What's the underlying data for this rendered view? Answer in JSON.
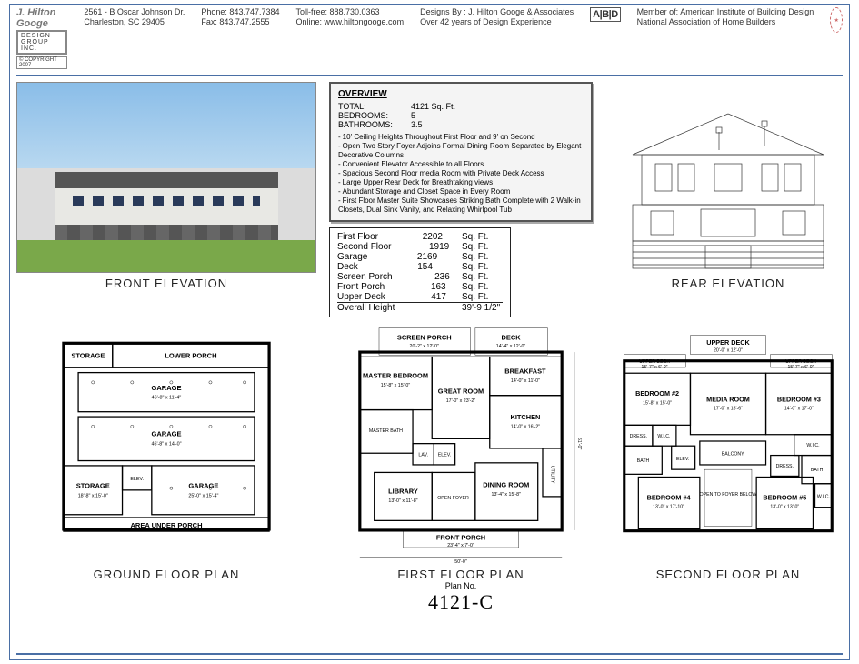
{
  "header": {
    "company": "J. Hilton Googe",
    "company_sub": "DESIGN GROUP INC.",
    "copyright": "© COPYRIGHT 2007",
    "addr1": "2561 - B Oscar Johnson Dr.",
    "addr2": "Charleston, SC 29405",
    "phone": "Phone: 843.747.7384",
    "fax": "Fax: 843.747.2555",
    "tollfree": "Toll-free: 888.730.0363",
    "online": "Online: www.hiltongooge.com",
    "designs": "Designs By : J. Hilton Googe & Associates",
    "experience": "Over 42 years of Design Experience",
    "abd": "A|B|D",
    "member1": "Member of: American Institute of Building Design",
    "member2": "National Association of Home Builders"
  },
  "labels": {
    "front": "FRONT ELEVATION",
    "rear": "REAR ELEVATION",
    "ground": "GROUND FLOOR PLAN",
    "first": "FIRST FLOOR PLAN",
    "second": "SECOND FLOOR PLAN",
    "planno_label": "Plan No.",
    "planno": "4121-C"
  },
  "overview": {
    "title": "OVERVIEW",
    "total_k": "TOTAL:",
    "total_v": "4121 Sq. Ft.",
    "beds_k": "BEDROOMS:",
    "beds_v": "5",
    "baths_k": "BATHROOMS:",
    "baths_v": "3.5",
    "features": [
      "10' Ceiling Heights Throughout First Floor and 9' on Second",
      "Open Two Story Foyer Adjoins Formal Dining Room Separated by Elegant Decorative Columns",
      "Convenient Elevator Accessible to all Floors",
      "Spacious Second Floor media Room with Private Deck Access",
      "Large Upper Rear Deck for Breathtaking views",
      "Abundant Storage and Closet Space in Every Room",
      "First Floor Master Suite Showcases Striking Bath Complete with 2 Walk-in Closets, Dual Sink Vanity, and Relaxing Whirlpool Tub"
    ]
  },
  "areas": [
    {
      "k": "First Floor",
      "v": "2202",
      "u": "Sq. Ft."
    },
    {
      "k": "Second Floor",
      "v": "1919",
      "u": "Sq. Ft."
    },
    {
      "k": "Garage",
      "v": "2169",
      "u": "Sq. Ft."
    },
    {
      "k": "Deck",
      "v": "154",
      "u": "Sq. Ft."
    },
    {
      "k": "Screen Porch",
      "v": "236",
      "u": "Sq. Ft."
    },
    {
      "k": "Front Porch",
      "v": "163",
      "u": "Sq. Ft."
    },
    {
      "k": "Upper Deck",
      "v": "417",
      "u": "Sq. Ft."
    },
    {
      "k": "Overall Height",
      "v": "",
      "u": "39'-9 1/2\""
    }
  ],
  "ground_rooms": {
    "storage1": "STORAGE",
    "lower_porch": "LOWER PORCH",
    "garage1": "GARAGE",
    "garage1_dim": "46'-8\" x 11'-4\"",
    "garage2": "GARAGE",
    "garage2_dim": "46'-8\" x 14'-0\"",
    "garage3": "GARAGE",
    "garage3_dim": "25'-0\" x 15'-4\"",
    "storage2": "STORAGE",
    "storage2_dim": "18'-8\" x 15'-0\"",
    "elev": "ELEV.",
    "aup": "AREA UNDER PORCH"
  },
  "first_rooms": {
    "screen": "SCREEN PORCH",
    "screen_dim": "20'-2\" x 12'-0\"",
    "deck": "DECK",
    "deck_dim": "14'-4\" x 12'-0\"",
    "master": "MASTER BEDROOM",
    "master_dim": "15'-8\" x 15'-0\"",
    "breakfast": "BREAKFAST",
    "breakfast_dim": "14'-0\" x 11'-0\"",
    "great": "GREAT ROOM",
    "great_dim": "17'-0\" x 23'-2\"",
    "mbath": "MASTER BATH",
    "kitchen": "KITCHEN",
    "kitchen_dim": "14'-0\" x 16'-2\"",
    "lav": "LAV.",
    "elev": "ELEV.",
    "utility": "UTILITY",
    "library": "LIBRARY",
    "library_dim": "13'-0\" x 11'-8\"",
    "foyer": "OPEN FOYER",
    "dining": "DINING ROOM",
    "dining_dim": "13'-4\" x 15'-8\"",
    "front_porch": "FRONT PORCH",
    "front_porch_dim": "23'-4\" x 7'-0\"",
    "width": "50'-0\"",
    "height": "61'-0\""
  },
  "second_rooms": {
    "udeck_c": "UPPER DECK",
    "udeck_c_dim": "20'-0\" x 12'-0\"",
    "udeck_l": "UPPER DECK",
    "udeck_l_dim": "15'-7\" x 6'-0\"",
    "udeck_r": "UPPER DECK",
    "udeck_r_dim": "15'-7\" x 6'-0\"",
    "b2": "BEDROOM #2",
    "b2_dim": "15'-8\" x 15'-0\"",
    "media": "MEDIA ROOM",
    "media_dim": "17'-0\" x 18'-6\"",
    "b3": "BEDROOM #3",
    "b3_dim": "14'-0\" x 17'-0\"",
    "dress": "DRESS.",
    "wic": "W.I.C.",
    "bath": "BATH",
    "elev": "ELEV.",
    "balcony": "BALCONY",
    "b4": "BEDROOM #4",
    "b4_dim": "13'-0\" x 17'-10\"",
    "open": "OPEN TO FOYER BELOW",
    "b5": "BEDROOM #5",
    "b5_dim": "13'-0\" x 13'-0\""
  },
  "colors": {
    "rule": "#4a6fa5",
    "ink": "#222"
  }
}
